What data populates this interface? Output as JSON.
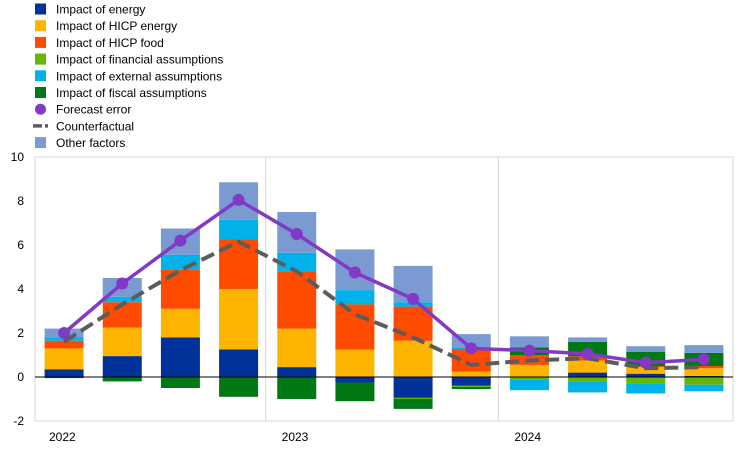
{
  "chart_data": {
    "type": "bar",
    "subtype": "stacked-bar-with-lines",
    "title": "",
    "xlabel": "",
    "ylabel": "",
    "ylim": [
      -2,
      10
    ],
    "yticks": [
      -2,
      0,
      2,
      4,
      6,
      8,
      10
    ],
    "grid": false,
    "legend_position": "top-left",
    "categories": [
      "2022 Q1",
      "2022 Q2",
      "2022 Q3",
      "2022 Q4",
      "2023 Q1",
      "2023 Q2",
      "2023 Q3",
      "2023 Q4",
      "2024 Q1",
      "2024 Q2",
      "2024 Q3",
      "2024 Q4"
    ],
    "year_labels": [
      {
        "label": "2022",
        "start_index": 0
      },
      {
        "label": "2023",
        "start_index": 4
      },
      {
        "label": "2024",
        "start_index": 8
      }
    ],
    "series": [
      {
        "name": "Impact of energy",
        "kind": "bar",
        "color": "#003299",
        "values": [
          0.35,
          0.95,
          1.8,
          1.25,
          0.45,
          -0.25,
          -0.95,
          -0.4,
          0.0,
          0.2,
          0.15,
          0.05
        ]
      },
      {
        "name": "Impact of HICP energy",
        "kind": "bar",
        "color": "#FFB400",
        "values": [
          0.95,
          1.3,
          1.3,
          2.75,
          1.75,
          1.25,
          1.65,
          0.25,
          0.55,
          0.55,
          0.3,
          0.35
        ]
      },
      {
        "name": "Impact of HICP food",
        "kind": "bar",
        "color": "#FF4B00",
        "values": [
          0.35,
          1.15,
          1.8,
          2.25,
          2.6,
          2.05,
          1.55,
          1.0,
          0.45,
          0.2,
          0.05,
          0.1
        ]
      },
      {
        "name": "Impact of financial assumptions",
        "kind": "bar",
        "color": "#65B800",
        "values": [
          0.0,
          0.0,
          0.0,
          0.0,
          0.0,
          0.0,
          -0.05,
          -0.05,
          -0.1,
          -0.2,
          -0.3,
          -0.35
        ]
      },
      {
        "name": "Impact of external assumptions",
        "kind": "bar",
        "color": "#00B1EA",
        "values": [
          0.15,
          0.25,
          0.65,
          0.9,
          0.85,
          0.65,
          0.2,
          0.1,
          -0.5,
          -0.5,
          -0.45,
          -0.3
        ]
      },
      {
        "name": "Impact of fiscal assumptions",
        "kind": "bar",
        "color": "#007816",
        "values": [
          -0.05,
          -0.2,
          -0.5,
          -0.9,
          -1.0,
          -0.85,
          -0.45,
          -0.1,
          0.35,
          0.65,
          0.65,
          0.6
        ]
      },
      {
        "name": "Forecast error",
        "kind": "line-markers",
        "color": "#8139C6",
        "values": [
          2.0,
          4.25,
          6.2,
          8.05,
          6.5,
          4.75,
          3.55,
          1.3,
          1.2,
          1.05,
          0.65,
          0.8
        ]
      },
      {
        "name": "Counterfactual",
        "kind": "dashed-line",
        "color": "#5C5C5C",
        "values": [
          1.6,
          3.3,
          4.85,
          6.15,
          4.8,
          2.85,
          1.8,
          0.55,
          0.75,
          0.85,
          0.4,
          0.45
        ]
      },
      {
        "name": "Other factors",
        "kind": "bar",
        "color": "#7C9AD2",
        "values": [
          0.4,
          0.85,
          1.2,
          1.7,
          1.85,
          1.85,
          1.65,
          0.6,
          0.5,
          0.2,
          0.25,
          0.35
        ]
      }
    ]
  }
}
